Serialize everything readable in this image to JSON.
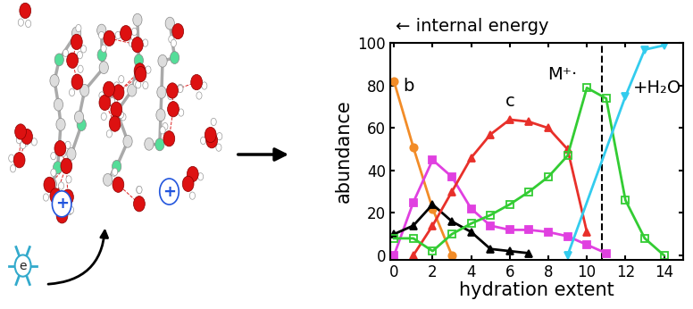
{
  "chart_data": {
    "type": "line",
    "top_label": "← internal energy",
    "x_label": "hydration extent",
    "y_label": "abundance",
    "xlim": [
      -0.2,
      15
    ],
    "ylim": [
      -2,
      100
    ],
    "xticks": [
      0,
      2,
      4,
      6,
      8,
      10,
      12,
      14
    ],
    "yticks": [
      0,
      20,
      40,
      60,
      80,
      100
    ],
    "reference_x": 10.8,
    "series": [
      {
        "name": "b",
        "color": "#f28c28",
        "marker": "circle",
        "line_style": "solid",
        "x": [
          0,
          1,
          2,
          3
        ],
        "values": [
          82,
          51,
          22,
          0
        ]
      },
      {
        "color": "#e040e0",
        "marker": "square",
        "line_style": "solid",
        "x": [
          0,
          1,
          2,
          3,
          4,
          5,
          6,
          7,
          8,
          9,
          10,
          11
        ],
        "values": [
          0,
          25,
          45,
          37,
          22,
          14,
          12,
          12,
          11,
          9,
          5,
          1
        ]
      },
      {
        "color": "#000000",
        "marker": "triangle_up",
        "line_style": "solid",
        "x": [
          0,
          1,
          2,
          3,
          4,
          5,
          6,
          7
        ],
        "values": [
          10,
          14,
          24,
          16,
          11,
          3,
          2,
          1
        ]
      },
      {
        "name": "c",
        "color": "#e8302a",
        "marker": "triangle_up",
        "line_style": "solid",
        "x": [
          1,
          2,
          3,
          4,
          5,
          6,
          7,
          8,
          9,
          10
        ],
        "values": [
          0,
          14,
          30,
          46,
          57,
          64,
          63,
          60,
          50,
          11
        ]
      },
      {
        "name": "M⁺·",
        "color": "#33cc33",
        "marker": "open_square",
        "line_style": "solid",
        "x": [
          0,
          1,
          2,
          3,
          4,
          5,
          6,
          7,
          8,
          9,
          10,
          11,
          12,
          13,
          14
        ],
        "values": [
          8,
          8,
          2,
          10,
          15,
          19,
          24,
          30,
          37,
          47,
          79,
          74,
          26,
          8,
          0
        ]
      },
      {
        "name": "+H₂O",
        "color": "#33ccee",
        "marker": "triangle_down",
        "line_style": "solid",
        "x": [
          9,
          12,
          13,
          14
        ],
        "values": [
          0,
          75,
          97,
          99
        ]
      }
    ]
  },
  "diagram": {
    "electron_label": "e",
    "charge_label": "+"
  }
}
